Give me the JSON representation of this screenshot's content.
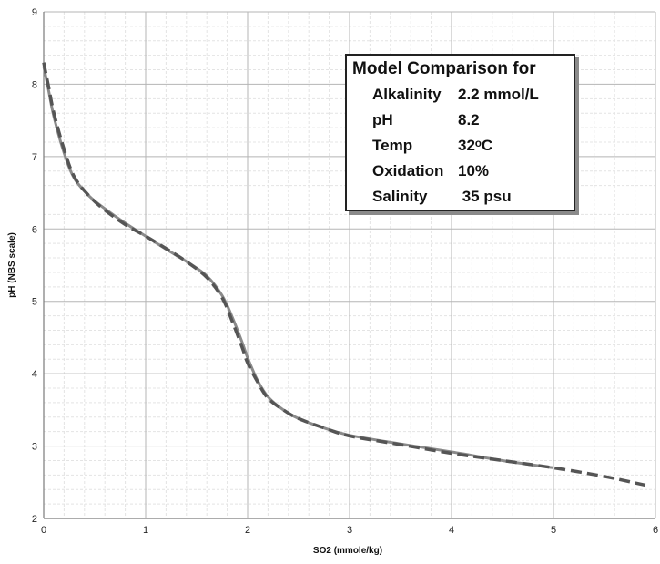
{
  "chart_data": {
    "type": "line",
    "title": "",
    "xlabel": "SO2 (mmole/kg)",
    "ylabel": "pH (NBS scale)",
    "xlim": [
      0,
      6
    ],
    "ylim": [
      2,
      9
    ],
    "x_ticks": [
      "0",
      "1",
      "2",
      "3",
      "4",
      "5",
      "6"
    ],
    "y_ticks": [
      "2",
      "3",
      "4",
      "5",
      "6",
      "7",
      "8",
      "9"
    ],
    "grid": true,
    "minor_grid": true,
    "series": [
      {
        "style": "solid",
        "color": "#8a8a8a",
        "x": [
          0,
          0.05,
          0.1,
          0.2,
          0.3,
          0.45,
          0.6,
          0.8,
          1.0,
          1.2,
          1.4,
          1.6,
          1.75,
          1.85,
          1.95,
          2.0,
          2.1,
          2.2,
          2.35,
          2.5,
          2.75,
          3.0,
          3.5,
          4.0,
          4.5,
          5.0
        ],
        "y": [
          8.25,
          7.9,
          7.55,
          7.05,
          6.7,
          6.45,
          6.28,
          6.08,
          5.9,
          5.72,
          5.55,
          5.35,
          5.08,
          4.78,
          4.42,
          4.22,
          3.9,
          3.68,
          3.5,
          3.38,
          3.25,
          3.15,
          3.03,
          2.92,
          2.8,
          2.7
        ]
      },
      {
        "style": "dashed",
        "color": "#555555",
        "x": [
          0,
          0.05,
          0.1,
          0.2,
          0.3,
          0.45,
          0.6,
          0.8,
          1.0,
          1.2,
          1.4,
          1.6,
          1.75,
          1.85,
          1.95,
          2.0,
          2.1,
          2.2,
          2.35,
          2.5,
          2.75,
          3.0,
          3.5,
          4.0,
          4.5,
          5.0,
          5.5,
          5.9
        ],
        "y": [
          8.3,
          7.95,
          7.6,
          7.1,
          6.72,
          6.45,
          6.26,
          6.06,
          5.9,
          5.73,
          5.55,
          5.33,
          5.05,
          4.72,
          4.35,
          4.15,
          3.88,
          3.66,
          3.5,
          3.38,
          3.25,
          3.14,
          3.02,
          2.9,
          2.8,
          2.7,
          2.58,
          2.46
        ]
      }
    ]
  },
  "info_box": {
    "title": "Model Comparison for",
    "rows": [
      {
        "label": "Alkalinity",
        "value": "2.2 mmol/L"
      },
      {
        "label": "pH",
        "value": "8.2"
      },
      {
        "label": "Temp",
        "value": "32ᵒC"
      },
      {
        "label": "Oxidation",
        "value": "10%"
      },
      {
        "label": "Salinity",
        "value": " 35 psu"
      }
    ]
  }
}
